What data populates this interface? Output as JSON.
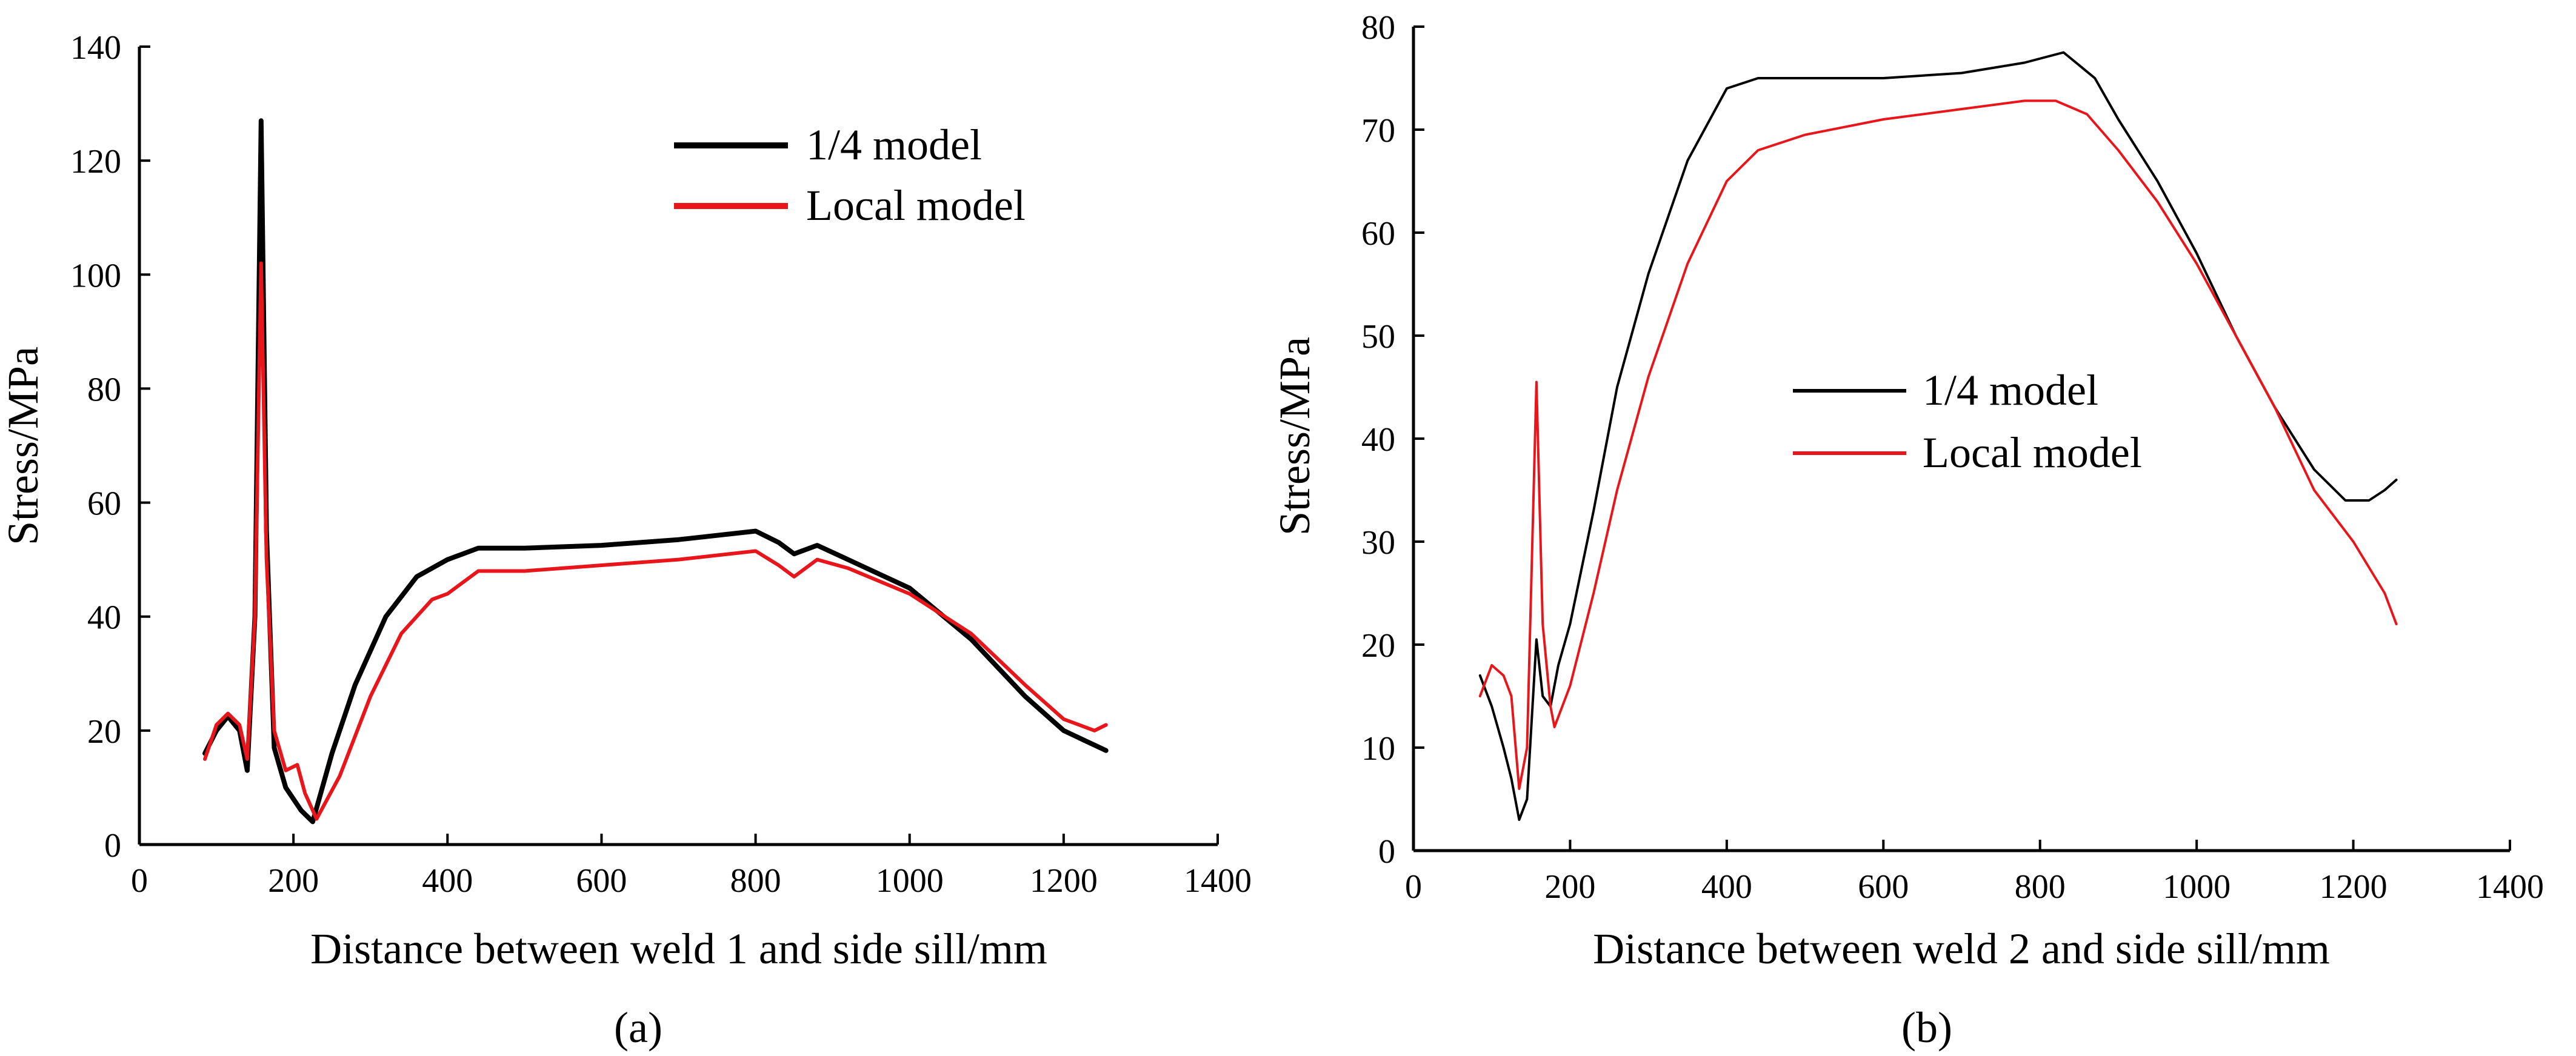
{
  "chart_data": [
    {
      "type": "line",
      "panel_label": "(a)",
      "xlabel": "Distance between weld 1 and side sill/mm",
      "ylabel": "Stress/MPa",
      "xlim": [
        0,
        1400
      ],
      "ylim": [
        0,
        140
      ],
      "xticks": [
        0,
        200,
        400,
        600,
        800,
        1000,
        1200,
        1400
      ],
      "yticks": [
        0,
        20,
        40,
        60,
        80,
        100,
        120,
        140
      ],
      "legend_position": "top-right",
      "series": [
        {
          "name": "1/4 model",
          "color": "#000000",
          "x": [
            85,
            100,
            115,
            130,
            140,
            150,
            158,
            165,
            175,
            190,
            210,
            225,
            250,
            280,
            320,
            360,
            400,
            440,
            500,
            600,
            700,
            800,
            830,
            850,
            880,
            920,
            1000,
            1080,
            1150,
            1200,
            1255
          ],
          "y": [
            16,
            20,
            22.5,
            20,
            13,
            40,
            127,
            55,
            17,
            10,
            6,
            4,
            16,
            28,
            40,
            47,
            50,
            52,
            52,
            52.5,
            53.5,
            55,
            53,
            51,
            52.5,
            50,
            45,
            36,
            26,
            20,
            16.5
          ]
        },
        {
          "name": "Local model",
          "color": "#e8161b",
          "x": [
            85,
            100,
            115,
            130,
            140,
            150,
            158,
            165,
            175,
            190,
            205,
            215,
            230,
            260,
            300,
            340,
            380,
            400,
            440,
            500,
            600,
            700,
            800,
            830,
            850,
            880,
            920,
            1000,
            1080,
            1150,
            1200,
            1240,
            1255
          ],
          "y": [
            15,
            21,
            23,
            21,
            15,
            40,
            102,
            50,
            20,
            13,
            14,
            9,
            4.5,
            12,
            26,
            37,
            43,
            44,
            48,
            48,
            49,
            50,
            51.5,
            49,
            47,
            50,
            48.5,
            44,
            37,
            28,
            22,
            20,
            21
          ]
        }
      ]
    },
    {
      "type": "line",
      "panel_label": "(b)",
      "xlabel": "Distance between weld 2 and side sill/mm",
      "ylabel": "Stress/MPa",
      "xlim": [
        0,
        1400
      ],
      "ylim": [
        0,
        80
      ],
      "xticks": [
        0,
        200,
        400,
        600,
        800,
        1000,
        1200,
        1400
      ],
      "yticks": [
        0,
        10,
        20,
        30,
        40,
        50,
        60,
        70,
        80
      ],
      "legend_position": "center",
      "series": [
        {
          "name": "1/4 model",
          "color": "#000000",
          "x": [
            85,
            100,
            115,
            125,
            135,
            145,
            157,
            165,
            175,
            185,
            200,
            230,
            260,
            300,
            350,
            400,
            440,
            500,
            600,
            700,
            780,
            830,
            870,
            900,
            950,
            1000,
            1050,
            1100,
            1150,
            1190,
            1220,
            1240,
            1255
          ],
          "y": [
            17,
            14,
            10,
            7,
            3,
            5,
            20.5,
            15,
            14,
            18,
            22,
            33,
            45,
            56,
            67,
            74,
            75,
            75,
            75,
            75.5,
            76.5,
            77.5,
            75,
            71,
            65,
            58,
            50,
            43,
            37,
            34,
            34,
            35,
            36
          ]
        },
        {
          "name": "Local model",
          "color": "#e8161b",
          "x": [
            85,
            100,
            115,
            125,
            135,
            145,
            157,
            165,
            175,
            180,
            200,
            230,
            260,
            300,
            350,
            400,
            440,
            500,
            600,
            700,
            780,
            820,
            860,
            900,
            950,
            1000,
            1050,
            1100,
            1150,
            1200,
            1240,
            1255
          ],
          "y": [
            15,
            18,
            17,
            15,
            6,
            10,
            45.5,
            22,
            14,
            12,
            16,
            25,
            35,
            46,
            57,
            65,
            68,
            69.5,
            71,
            72,
            72.8,
            72.8,
            71.5,
            68,
            63,
            57,
            50,
            43,
            35,
            30,
            25,
            22
          ]
        }
      ]
    }
  ]
}
